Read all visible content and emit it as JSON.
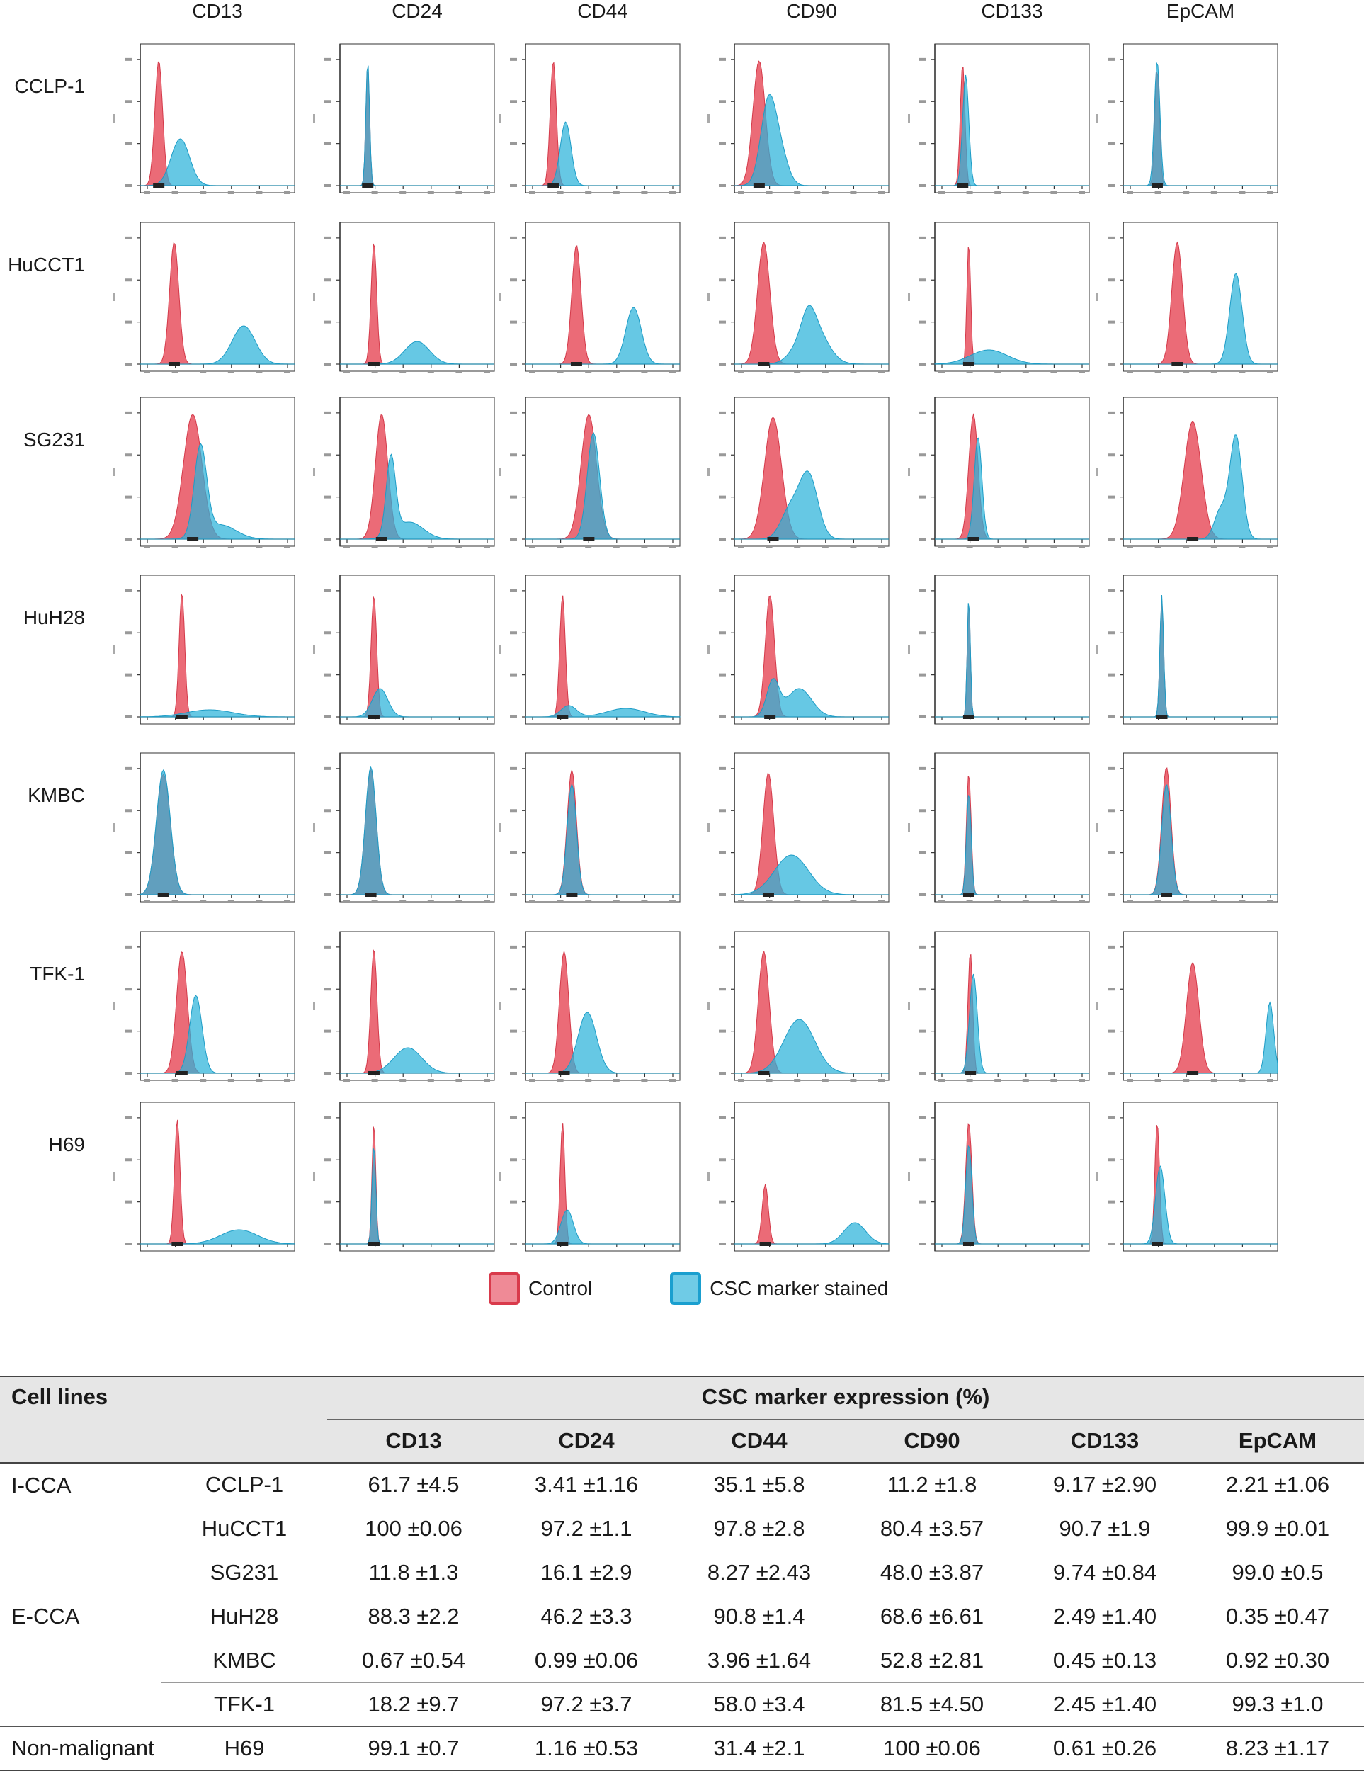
{
  "chart_data": {
    "type": "histogram-grid",
    "markers": [
      "CD13",
      "CD24",
      "CD44",
      "CD90",
      "CD133",
      "EpCAM"
    ],
    "cell_lines": [
      "CCLP-1",
      "HuCCT1",
      "SG231",
      "HuH28",
      "KMBC",
      "TFK-1",
      "H69"
    ],
    "legend": [
      {
        "name": "Control",
        "color": "#e8515f"
      },
      {
        "name": "CSC marker stained",
        "color": "#2bb3d9"
      }
    ],
    "panels": [
      [
        {
          "c": {
            "mu": 0.12,
            "sig": 0.025,
            "h": 0.88
          },
          "s": [
            {
              "mu": 0.26,
              "sig": 0.06,
              "h": 0.33
            }
          ]
        },
        {
          "c": {
            "mu": 0.18,
            "sig": 0.012,
            "h": 0.85
          },
          "s": [
            {
              "mu": 0.18,
              "sig": 0.012,
              "h": 0.88
            }
          ]
        },
        {
          "c": {
            "mu": 0.18,
            "sig": 0.02,
            "h": 0.88
          },
          "s": [
            {
              "mu": 0.26,
              "sig": 0.035,
              "h": 0.45
            }
          ]
        },
        {
          "c": {
            "mu": 0.16,
            "sig": 0.04,
            "h": 0.88
          },
          "s": [
            {
              "mu": 0.22,
              "sig": 0.05,
              "h": 0.58
            },
            {
              "mu": 0.3,
              "sig": 0.05,
              "h": 0.2
            }
          ]
        },
        {
          "c": {
            "mu": 0.18,
            "sig": 0.015,
            "h": 0.86
          },
          "s": [
            {
              "mu": 0.2,
              "sig": 0.02,
              "h": 0.78
            }
          ]
        },
        {
          "c": {
            "mu": 0.22,
            "sig": 0.015,
            "h": 0.82
          },
          "s": [
            {
              "mu": 0.22,
              "sig": 0.018,
              "h": 0.88
            }
          ]
        }
      ],
      [
        {
          "c": {
            "mu": 0.22,
            "sig": 0.03,
            "h": 0.86
          },
          "s": [
            {
              "mu": 0.67,
              "sig": 0.075,
              "h": 0.27
            }
          ]
        },
        {
          "c": {
            "mu": 0.22,
            "sig": 0.018,
            "h": 0.86
          },
          "s": [
            {
              "mu": 0.5,
              "sig": 0.08,
              "h": 0.16
            }
          ]
        },
        {
          "c": {
            "mu": 0.33,
            "sig": 0.03,
            "h": 0.84
          },
          "s": [
            {
              "mu": 0.7,
              "sig": 0.05,
              "h": 0.4
            }
          ]
        },
        {
          "c": {
            "mu": 0.19,
            "sig": 0.04,
            "h": 0.86
          },
          "s": [
            {
              "mu": 0.5,
              "sig": 0.09,
              "h": 0.3
            },
            {
              "mu": 0.48,
              "sig": 0.04,
              "h": 0.12
            }
          ]
        },
        {
          "c": {
            "mu": 0.22,
            "sig": 0.012,
            "h": 0.86
          },
          "s": [
            {
              "mu": 0.35,
              "sig": 0.12,
              "h": 0.1
            }
          ]
        },
        {
          "c": {
            "mu": 0.35,
            "sig": 0.035,
            "h": 0.86
          },
          "s": [
            {
              "mu": 0.73,
              "sig": 0.04,
              "h": 0.64
            }
          ]
        }
      ],
      [
        {
          "c": {
            "mu": 0.34,
            "sig": 0.06,
            "h": 0.88
          },
          "s": [
            {
              "mu": 0.39,
              "sig": 0.04,
              "h": 0.63
            },
            {
              "mu": 0.52,
              "sig": 0.1,
              "h": 0.1
            }
          ]
        },
        {
          "c": {
            "mu": 0.27,
            "sig": 0.04,
            "h": 0.88
          },
          "s": [
            {
              "mu": 0.33,
              "sig": 0.03,
              "h": 0.55
            },
            {
              "mu": 0.45,
              "sig": 0.09,
              "h": 0.12
            }
          ]
        },
        {
          "c": {
            "mu": 0.41,
            "sig": 0.05,
            "h": 0.88
          },
          "s": [
            {
              "mu": 0.44,
              "sig": 0.04,
              "h": 0.75
            }
          ]
        },
        {
          "c": {
            "mu": 0.25,
            "sig": 0.055,
            "h": 0.86
          },
          "s": [
            {
              "mu": 0.48,
              "sig": 0.06,
              "h": 0.45
            },
            {
              "mu": 0.36,
              "sig": 0.06,
              "h": 0.2
            }
          ]
        },
        {
          "c": {
            "mu": 0.25,
            "sig": 0.03,
            "h": 0.88
          },
          "s": [
            {
              "mu": 0.28,
              "sig": 0.025,
              "h": 0.72
            }
          ]
        },
        {
          "c": {
            "mu": 0.45,
            "sig": 0.055,
            "h": 0.83
          },
          "s": [
            {
              "mu": 0.73,
              "sig": 0.04,
              "h": 0.73
            },
            {
              "mu": 0.63,
              "sig": 0.04,
              "h": 0.2
            }
          ]
        }
      ],
      [
        {
          "c": {
            "mu": 0.27,
            "sig": 0.018,
            "h": 0.88
          },
          "s": [
            {
              "mu": 0.45,
              "sig": 0.15,
              "h": 0.05
            }
          ]
        },
        {
          "c": {
            "mu": 0.22,
            "sig": 0.018,
            "h": 0.86
          },
          "s": [
            {
              "mu": 0.26,
              "sig": 0.05,
              "h": 0.2
            }
          ]
        },
        {
          "c": {
            "mu": 0.24,
            "sig": 0.018,
            "h": 0.86
          },
          "s": [
            {
              "mu": 0.28,
              "sig": 0.05,
              "h": 0.08
            },
            {
              "mu": 0.65,
              "sig": 0.12,
              "h": 0.06
            }
          ]
        },
        {
          "c": {
            "mu": 0.23,
            "sig": 0.03,
            "h": 0.86
          },
          "s": [
            {
              "mu": 0.25,
              "sig": 0.04,
              "h": 0.25
            },
            {
              "mu": 0.42,
              "sig": 0.08,
              "h": 0.2
            }
          ]
        },
        {
          "c": {
            "mu": 0.22,
            "sig": 0.01,
            "h": 0.83
          },
          "s": [
            {
              "mu": 0.22,
              "sig": 0.01,
              "h": 0.85
            }
          ]
        },
        {
          "c": {
            "mu": 0.25,
            "sig": 0.012,
            "h": 0.83
          },
          "s": [
            {
              "mu": 0.25,
              "sig": 0.012,
              "h": 0.86
            }
          ]
        }
      ],
      [
        {
          "c": {
            "mu": 0.15,
            "sig": 0.045,
            "h": 0.85
          },
          "s": [
            {
              "mu": 0.15,
              "sig": 0.045,
              "h": 0.88
            }
          ]
        },
        {
          "c": {
            "mu": 0.2,
            "sig": 0.035,
            "h": 0.88
          },
          "s": [
            {
              "mu": 0.2,
              "sig": 0.035,
              "h": 0.9
            }
          ]
        },
        {
          "c": {
            "mu": 0.3,
            "sig": 0.03,
            "h": 0.88
          },
          "s": [
            {
              "mu": 0.3,
              "sig": 0.03,
              "h": 0.78
            }
          ]
        },
        {
          "c": {
            "mu": 0.22,
            "sig": 0.035,
            "h": 0.86
          },
          "s": [
            {
              "mu": 0.37,
              "sig": 0.11,
              "h": 0.28
            }
          ]
        },
        {
          "c": {
            "mu": 0.22,
            "sig": 0.015,
            "h": 0.86
          },
          "s": [
            {
              "mu": 0.22,
              "sig": 0.015,
              "h": 0.72
            }
          ]
        },
        {
          "c": {
            "mu": 0.28,
            "sig": 0.03,
            "h": 0.9
          },
          "s": [
            {
              "mu": 0.28,
              "sig": 0.03,
              "h": 0.78
            }
          ]
        }
      ],
      [
        {
          "c": {
            "mu": 0.27,
            "sig": 0.035,
            "h": 0.86
          },
          "s": [
            {
              "mu": 0.36,
              "sig": 0.04,
              "h": 0.55
            }
          ]
        },
        {
          "c": {
            "mu": 0.22,
            "sig": 0.02,
            "h": 0.88
          },
          "s": [
            {
              "mu": 0.44,
              "sig": 0.09,
              "h": 0.18
            }
          ]
        },
        {
          "c": {
            "mu": 0.25,
            "sig": 0.03,
            "h": 0.86
          },
          "s": [
            {
              "mu": 0.4,
              "sig": 0.06,
              "h": 0.43
            }
          ]
        },
        {
          "c": {
            "mu": 0.19,
            "sig": 0.035,
            "h": 0.86
          },
          "s": [
            {
              "mu": 0.42,
              "sig": 0.1,
              "h": 0.38
            }
          ]
        },
        {
          "c": {
            "mu": 0.23,
            "sig": 0.015,
            "h": 0.86
          },
          "s": [
            {
              "mu": 0.25,
              "sig": 0.025,
              "h": 0.7
            }
          ]
        },
        {
          "c": {
            "mu": 0.45,
            "sig": 0.04,
            "h": 0.78
          },
          "s": [
            {
              "mu": 0.95,
              "sig": 0.025,
              "h": 0.5
            }
          ]
        }
      ],
      [
        {
          "c": {
            "mu": 0.24,
            "sig": 0.018,
            "h": 0.88
          },
          "s": [
            {
              "mu": 0.64,
              "sig": 0.12,
              "h": 0.1
            }
          ]
        },
        {
          "c": {
            "mu": 0.22,
            "sig": 0.012,
            "h": 0.86
          },
          "s": [
            {
              "mu": 0.22,
              "sig": 0.012,
              "h": 0.7
            }
          ]
        },
        {
          "c": {
            "mu": 0.24,
            "sig": 0.015,
            "h": 0.86
          },
          "s": [
            {
              "mu": 0.27,
              "sig": 0.04,
              "h": 0.24
            }
          ]
        },
        {
          "c": {
            "mu": 0.2,
            "sig": 0.02,
            "h": 0.42
          },
          "s": [
            {
              "mu": 0.78,
              "sig": 0.07,
              "h": 0.15
            }
          ]
        },
        {
          "c": {
            "mu": 0.22,
            "sig": 0.02,
            "h": 0.86
          },
          "s": [
            {
              "mu": 0.22,
              "sig": 0.02,
              "h": 0.7
            }
          ]
        },
        {
          "c": {
            "mu": 0.22,
            "sig": 0.015,
            "h": 0.86
          },
          "s": [
            {
              "mu": 0.24,
              "sig": 0.03,
              "h": 0.55
            }
          ]
        }
      ]
    ]
  },
  "table": {
    "col_header_cell_lines": "Cell lines",
    "col_header_group": "CSC marker expression (%)",
    "markers": [
      "CD13",
      "CD24",
      "CD44",
      "CD90",
      "CD133",
      "EpCAM"
    ],
    "groups": [
      {
        "name": "I-CCA",
        "rows": [
          {
            "line": "CCLP-1",
            "values": [
              "61.7 ±4.5",
              "3.41 ±1.16",
              "35.1 ±5.8",
              "11.2 ±1.8",
              "9.17 ±2.90",
              "2.21 ±1.06"
            ]
          },
          {
            "line": "HuCCT1",
            "values": [
              "100 ±0.06",
              "97.2 ±1.1",
              "97.8 ±2.8",
              "80.4 ±3.57",
              "90.7 ±1.9",
              "99.9 ±0.01"
            ]
          },
          {
            "line": "SG231",
            "values": [
              "11.8 ±1.3",
              "16.1 ±2.9",
              "8.27 ±2.43",
              "48.0 ±3.87",
              "9.74 ±0.84",
              "99.0 ±0.5"
            ]
          }
        ]
      },
      {
        "name": "E-CCA",
        "rows": [
          {
            "line": "HuH28",
            "values": [
              "88.3 ±2.2",
              "46.2 ±3.3",
              "90.8 ±1.4",
              "68.6 ±6.61",
              "2.49 ±1.40",
              "0.35 ±0.47"
            ]
          },
          {
            "line": "KMBC",
            "values": [
              "0.67 ±0.54",
              "0.99 ±0.06",
              "3.96 ±1.64",
              "52.8 ±2.81",
              "0.45 ±0.13",
              "0.92 ±0.30"
            ]
          },
          {
            "line": "TFK-1",
            "values": [
              "18.2 ±9.7",
              "97.2 ±3.7",
              "58.0 ±3.4",
              "81.5 ±4.50",
              "2.45 ±1.40",
              "99.3 ±1.0"
            ]
          }
        ]
      },
      {
        "name": "Non-malignant",
        "rows": [
          {
            "line": "H69",
            "values": [
              "99.1 ±0.7",
              "1.16 ±0.53",
              "31.4 ±2.1",
              "100 ±0.06",
              "0.61 ±0.26",
              "8.23 ±1.17"
            ]
          }
        ]
      }
    ]
  }
}
